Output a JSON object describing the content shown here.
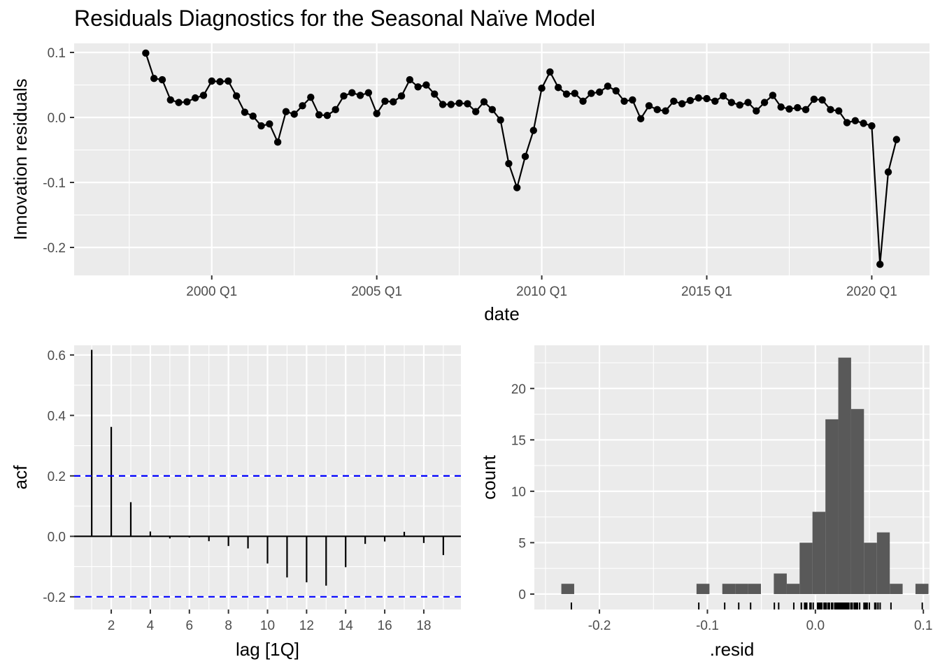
{
  "title": "Residuals Diagnostics for the Seasonal Naïve Model",
  "colors": {
    "panel": "#ebebeb",
    "grid": "#ffffff",
    "ink": "#000000",
    "bar": "#595959",
    "ci": "#0000ff",
    "tick_text": "#4d4d4d"
  },
  "chart_data": [
    {
      "type": "line",
      "name": "residuals-time-plot",
      "xlabel": "date",
      "ylabel": "Innovation residuals",
      "x_ticks": [
        {
          "value": 2000.0,
          "label": "2000 Q1"
        },
        {
          "value": 2005.0,
          "label": "2005 Q1"
        },
        {
          "value": 2010.0,
          "label": "2010 Q1"
        },
        {
          "value": 2015.0,
          "label": "2015 Q1"
        },
        {
          "value": 2020.0,
          "label": "2020 Q1"
        }
      ],
      "y_ticks": [
        {
          "value": 0.1,
          "label": "0.1"
        },
        {
          "value": 0.0,
          "label": "0.0"
        },
        {
          "value": -0.1,
          "label": "-0.1"
        },
        {
          "value": -0.2,
          "label": "-0.2"
        }
      ],
      "xlim": [
        1995.83,
        2021.75
      ],
      "ylim": [
        -0.243,
        0.114
      ],
      "markers": true,
      "x": [
        1998.0,
        1998.25,
        1998.5,
        1998.75,
        1999.0,
        1999.25,
        1999.5,
        1999.75,
        2000.0,
        2000.25,
        2000.5,
        2000.75,
        2001.0,
        2001.25,
        2001.5,
        2001.75,
        2002.0,
        2002.25,
        2002.5,
        2002.75,
        2003.0,
        2003.25,
        2003.5,
        2003.75,
        2004.0,
        2004.25,
        2004.5,
        2004.75,
        2005.0,
        2005.25,
        2005.5,
        2005.75,
        2006.0,
        2006.25,
        2006.5,
        2006.75,
        2007.0,
        2007.25,
        2007.5,
        2007.75,
        2008.0,
        2008.25,
        2008.5,
        2008.75,
        2009.0,
        2009.25,
        2009.5,
        2009.75,
        2010.0,
        2010.25,
        2010.5,
        2010.75,
        2011.0,
        2011.25,
        2011.5,
        2011.75,
        2012.0,
        2012.25,
        2012.5,
        2012.75,
        2013.0,
        2013.25,
        2013.5,
        2013.75,
        2014.0,
        2014.25,
        2014.5,
        2014.75,
        2015.0,
        2015.25,
        2015.5,
        2015.75,
        2016.0,
        2016.25,
        2016.5,
        2016.75,
        2017.0,
        2017.25,
        2017.5,
        2017.75,
        2018.0,
        2018.25,
        2018.5,
        2018.75,
        2019.0,
        2019.25,
        2019.5,
        2019.75,
        2020.0,
        2020.25,
        2020.5,
        2020.75
      ],
      "y": [
        0.099,
        0.06,
        0.058,
        0.027,
        0.023,
        0.024,
        0.03,
        0.034,
        0.056,
        0.055,
        0.056,
        0.033,
        0.008,
        0.002,
        -0.013,
        -0.01,
        -0.038,
        0.009,
        0.005,
        0.018,
        0.031,
        0.004,
        0.003,
        0.012,
        0.033,
        0.038,
        0.034,
        0.038,
        0.006,
        0.025,
        0.024,
        0.033,
        0.058,
        0.047,
        0.05,
        0.036,
        0.02,
        0.02,
        0.022,
        0.021,
        0.009,
        0.024,
        0.012,
        -0.004,
        -0.071,
        -0.108,
        -0.06,
        -0.02,
        0.045,
        0.07,
        0.046,
        0.036,
        0.037,
        0.025,
        0.037,
        0.039,
        0.048,
        0.041,
        0.025,
        0.027,
        -0.002,
        0.018,
        0.012,
        0.01,
        0.025,
        0.021,
        0.026,
        0.03,
        0.029,
        0.025,
        0.033,
        0.023,
        0.019,
        0.023,
        0.01,
        0.023,
        0.034,
        0.016,
        0.013,
        0.015,
        0.012,
        0.028,
        0.027,
        0.012,
        0.01,
        -0.008,
        -0.005,
        -0.009,
        -0.013,
        -0.226,
        -0.084,
        -0.034
      ]
    },
    {
      "type": "bar",
      "name": "acf-plot",
      "xlabel": "lag [1Q]",
      "ylabel": "acf",
      "x_ticks": [
        2,
        4,
        6,
        8,
        10,
        12,
        14,
        16,
        18
      ],
      "y_ticks": [
        {
          "value": 0.6,
          "label": "0.6"
        },
        {
          "value": 0.4,
          "label": "0.4"
        },
        {
          "value": 0.2,
          "label": "0.2"
        },
        {
          "value": 0.0,
          "label": "0.0"
        },
        {
          "value": -0.2,
          "label": "-0.2"
        }
      ],
      "xlim": [
        0.1,
        19.9
      ],
      "ylim": [
        -0.242,
        0.632
      ],
      "ci": 0.2,
      "categories": [
        1,
        2,
        3,
        4,
        5,
        6,
        7,
        8,
        9,
        10,
        11,
        12,
        13,
        14,
        15,
        16,
        17,
        18,
        19
      ],
      "values": [
        0.617,
        0.362,
        0.113,
        0.016,
        -0.007,
        -0.004,
        -0.016,
        -0.032,
        -0.04,
        -0.09,
        -0.136,
        -0.152,
        -0.163,
        -0.102,
        -0.025,
        -0.017,
        0.015,
        -0.022,
        -0.062
      ]
    },
    {
      "type": "bar",
      "name": "histogram",
      "xlabel": ".resid",
      "ylabel": "count",
      "x_ticks": [
        {
          "value": -0.2,
          "label": "-0.2"
        },
        {
          "value": -0.1,
          "label": "-0.1"
        },
        {
          "value": 0.0,
          "label": "0.0"
        },
        {
          "value": 0.1,
          "label": "0.1"
        }
      ],
      "y_ticks": [
        0,
        5,
        10,
        15,
        20
      ],
      "xlim": [
        -0.2603,
        0.1057
      ],
      "ylim": [
        -1.5,
        24.2
      ],
      "bins": [
        {
          "x0": -0.2353,
          "x1": -0.2234,
          "count": 1
        },
        {
          "x0": -0.1101,
          "x1": -0.0981,
          "count": 1
        },
        {
          "x0": -0.0862,
          "x1": -0.0742,
          "count": 1
        },
        {
          "x0": -0.0742,
          "x1": -0.0623,
          "count": 1
        },
        {
          "x0": -0.0623,
          "x1": -0.0504,
          "count": 1
        },
        {
          "x0": -0.0385,
          "x1": -0.0265,
          "count": 2
        },
        {
          "x0": -0.0265,
          "x1": -0.0146,
          "count": 1
        },
        {
          "x0": -0.0146,
          "x1": -0.0027,
          "count": 5
        },
        {
          "x0": -0.0027,
          "x1": 0.0093,
          "count": 8
        },
        {
          "x0": 0.0093,
          "x1": 0.0212,
          "count": 17
        },
        {
          "x0": 0.0212,
          "x1": 0.0331,
          "count": 23
        },
        {
          "x0": 0.0331,
          "x1": 0.045,
          "count": 18
        },
        {
          "x0": 0.045,
          "x1": 0.057,
          "count": 5
        },
        {
          "x0": 0.057,
          "x1": 0.0689,
          "count": 6
        },
        {
          "x0": 0.0689,
          "x1": 0.0808,
          "count": 1
        },
        {
          "x0": 0.0927,
          "x1": 0.1047,
          "count": 1
        }
      ],
      "rug": [
        -0.226,
        -0.108,
        -0.084,
        -0.071,
        -0.06,
        -0.038,
        -0.034,
        -0.02,
        -0.013,
        -0.013,
        -0.01,
        -0.009,
        -0.008,
        -0.005,
        -0.004,
        -0.002,
        0.002,
        0.003,
        0.004,
        0.005,
        0.006,
        0.008,
        0.009,
        0.009,
        0.01,
        0.01,
        0.01,
        0.012,
        0.012,
        0.012,
        0.012,
        0.013,
        0.015,
        0.016,
        0.018,
        0.018,
        0.019,
        0.02,
        0.02,
        0.021,
        0.021,
        0.022,
        0.023,
        0.023,
        0.023,
        0.024,
        0.024,
        0.024,
        0.025,
        0.025,
        0.025,
        0.025,
        0.025,
        0.026,
        0.027,
        0.027,
        0.027,
        0.028,
        0.029,
        0.03,
        0.03,
        0.031,
        0.033,
        0.033,
        0.033,
        0.033,
        0.034,
        0.034,
        0.034,
        0.036,
        0.036,
        0.037,
        0.037,
        0.038,
        0.038,
        0.039,
        0.041,
        0.045,
        0.046,
        0.047,
        0.048,
        0.05,
        0.055,
        0.056,
        0.056,
        0.058,
        0.058,
        0.06,
        0.07,
        0.099
      ]
    }
  ]
}
